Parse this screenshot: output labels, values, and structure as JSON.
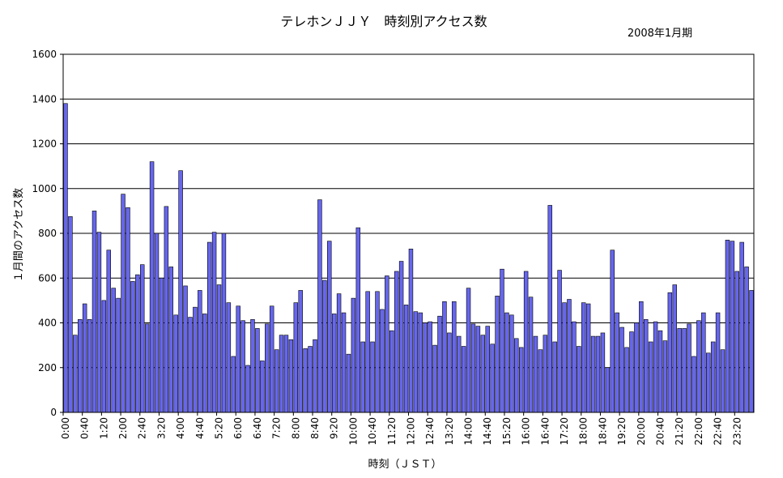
{
  "chart_data": {
    "type": "bar",
    "title": "テレホンＪＪＹ　時刻別アクセス数",
    "subtitle": "2008年1月期",
    "xlabel": "時刻（ＪＳＴ）",
    "ylabel": "１月間のアクセス数",
    "ylim": [
      0,
      1600
    ],
    "yticks": [
      0,
      200,
      400,
      600,
      800,
      1000,
      1200,
      1400,
      1600
    ],
    "grid": true,
    "legend": "none",
    "bar_color": "#6666ee",
    "interval_minutes": 10,
    "xtick_labels": [
      "0:00",
      "0:40",
      "1:20",
      "2:00",
      "2:40",
      "3:20",
      "4:00",
      "4:40",
      "5:20",
      "6:00",
      "6:40",
      "7:20",
      "8:00",
      "8:40",
      "9:20",
      "10:00",
      "10:40",
      "11:20",
      "12:00",
      "12:40",
      "13:20",
      "14:00",
      "14:40",
      "15:20",
      "16:00",
      "16:40",
      "17:20",
      "18:00",
      "18:40",
      "19:20",
      "20:00",
      "20:40",
      "21:20",
      "22:00",
      "22:40",
      "23:20"
    ],
    "values": [
      1380,
      875,
      345,
      415,
      485,
      415,
      900,
      805,
      500,
      725,
      555,
      510,
      975,
      915,
      585,
      615,
      660,
      395,
      1120,
      800,
      600,
      920,
      650,
      435,
      1080,
      565,
      425,
      470,
      545,
      440,
      760,
      805,
      570,
      800,
      490,
      250,
      475,
      410,
      210,
      415,
      375,
      230,
      395,
      475,
      280,
      345,
      345,
      325,
      490,
      545,
      285,
      295,
      325,
      950,
      590,
      765,
      440,
      530,
      445,
      260,
      510,
      825,
      315,
      540,
      315,
      540,
      460,
      610,
      365,
      630,
      675,
      480,
      730,
      450,
      445,
      400,
      405,
      300,
      430,
      495,
      355,
      495,
      340,
      295,
      555,
      395,
      385,
      345,
      385,
      305,
      520,
      640,
      445,
      435,
      330,
      290,
      630,
      515,
      340,
      280,
      345,
      925,
      315,
      635,
      490,
      505,
      405,
      295,
      490,
      485,
      340,
      340,
      355,
      200,
      725,
      445,
      380,
      290,
      360,
      400,
      495,
      415,
      315,
      405,
      365,
      320,
      535,
      570,
      375,
      375,
      395,
      250,
      410,
      445,
      265,
      315,
      445,
      280,
      770,
      765,
      630,
      760,
      650,
      545
    ]
  }
}
